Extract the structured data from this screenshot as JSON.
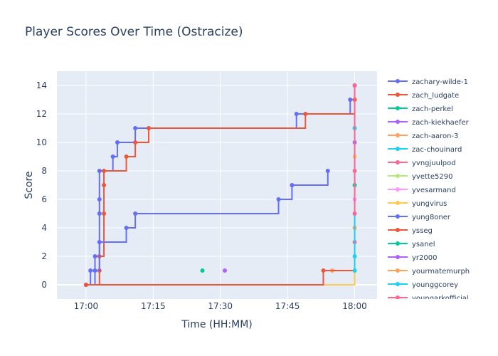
{
  "chart_data": {
    "type": "line",
    "title": "Player Scores Over Time (Ostracize)",
    "xlabel": "Time (HH:MM)",
    "ylabel": "Score",
    "x_domain_minutes": [
      -6.5,
      65
    ],
    "ylim": [
      -1,
      15
    ],
    "x_ticks": [
      {
        "minutes": 0,
        "label": "17:00"
      },
      {
        "minutes": 15,
        "label": "17:15"
      },
      {
        "minutes": 30,
        "label": "17:30"
      },
      {
        "minutes": 45,
        "label": "17:45"
      },
      {
        "minutes": 60,
        "label": "18:00"
      }
    ],
    "y_ticks": [
      0,
      2,
      4,
      6,
      8,
      10,
      12,
      14
    ],
    "line_shape": "step",
    "grid": true,
    "legend_position": "right",
    "series": [
      {
        "name": "zachary-wilde-1",
        "color": "#636efa",
        "points": [
          [
            "17:00",
            0
          ],
          [
            "17:01",
            1
          ],
          [
            "17:02",
            2
          ],
          [
            "17:03",
            5
          ],
          [
            "17:03",
            6
          ],
          [
            "17:03",
            8
          ],
          [
            "17:06",
            9
          ],
          [
            "17:07",
            10
          ],
          [
            "17:11",
            11
          ],
          [
            "17:47",
            12
          ],
          [
            "17:59",
            13
          ],
          [
            "18:00",
            14
          ]
        ]
      },
      {
        "name": "zach_ludgate",
        "color": "#ef553b",
        "points": [
          [
            "17:00",
            0
          ],
          [
            "17:03",
            1
          ],
          [
            "17:03",
            2
          ],
          [
            "17:04",
            5
          ],
          [
            "17:04",
            7
          ],
          [
            "17:04",
            8
          ],
          [
            "17:09",
            9
          ],
          [
            "17:11",
            10
          ],
          [
            "17:14",
            11
          ],
          [
            "17:49",
            12
          ],
          [
            "18:00",
            13
          ],
          [
            "18:00",
            14
          ]
        ]
      },
      {
        "name": "zach-perkel",
        "color": "#00cc96",
        "points": [
          [
            "17:26",
            1
          ]
        ]
      },
      {
        "name": "zach-kiekhaefer",
        "color": "#ab63fa",
        "points": [
          [
            "17:31",
            1
          ]
        ]
      },
      {
        "name": "zach-aaron-3",
        "color": "#ffa15a",
        "points": [
          [
            "17:55",
            1
          ]
        ]
      },
      {
        "name": "zac-chouinard",
        "color": "#19d3f3",
        "points": [
          [
            "18:00",
            2
          ],
          [
            "18:00",
            11
          ]
        ]
      },
      {
        "name": "yvngjuulpod",
        "color": "#ff6692",
        "points": [
          [
            "18:00",
            3
          ],
          [
            "18:00",
            8
          ]
        ]
      },
      {
        "name": "yvette5290",
        "color": "#b6e880",
        "points": [
          [
            "18:00",
            7
          ]
        ]
      },
      {
        "name": "yvesarmand",
        "color": "#ff97ff",
        "points": [
          [
            "18:00",
            6
          ]
        ]
      },
      {
        "name": "yungvirus",
        "color": "#fecb52",
        "points": [
          [
            "17:00",
            0
          ],
          [
            "18:00",
            9
          ]
        ]
      },
      {
        "name": "yung8oner",
        "color": "#636efa",
        "points": [
          [
            "17:00",
            0
          ],
          [
            "17:02",
            1
          ],
          [
            "17:03",
            3
          ],
          [
            "17:09",
            4
          ],
          [
            "17:11",
            5
          ],
          [
            "17:43",
            6
          ],
          [
            "17:46",
            7
          ],
          [
            "17:54",
            8
          ]
        ]
      },
      {
        "name": "ysseg",
        "color": "#ef553b",
        "points": [
          [
            "17:00",
            0
          ],
          [
            "17:53",
            1
          ],
          [
            "18:00",
            13
          ]
        ]
      },
      {
        "name": "ysanel",
        "color": "#00cc96",
        "points": [
          [
            "18:00",
            7
          ]
        ]
      },
      {
        "name": "yr2000",
        "color": "#ab63fa",
        "points": [
          [
            "18:00",
            10
          ]
        ]
      },
      {
        "name": "yourmatemurph",
        "color": "#ffa15a",
        "points": [
          [
            "18:00",
            1
          ],
          [
            "18:00",
            4
          ]
        ]
      },
      {
        "name": "younggcorey",
        "color": "#19d3f3",
        "points": [
          [
            "18:00",
            1
          ],
          [
            "18:00",
            11
          ]
        ]
      },
      {
        "name": "youngarkofficial",
        "color": "#ff6692",
        "points": [
          [
            "18:00",
            5
          ],
          [
            "18:00",
            14
          ]
        ]
      }
    ]
  }
}
